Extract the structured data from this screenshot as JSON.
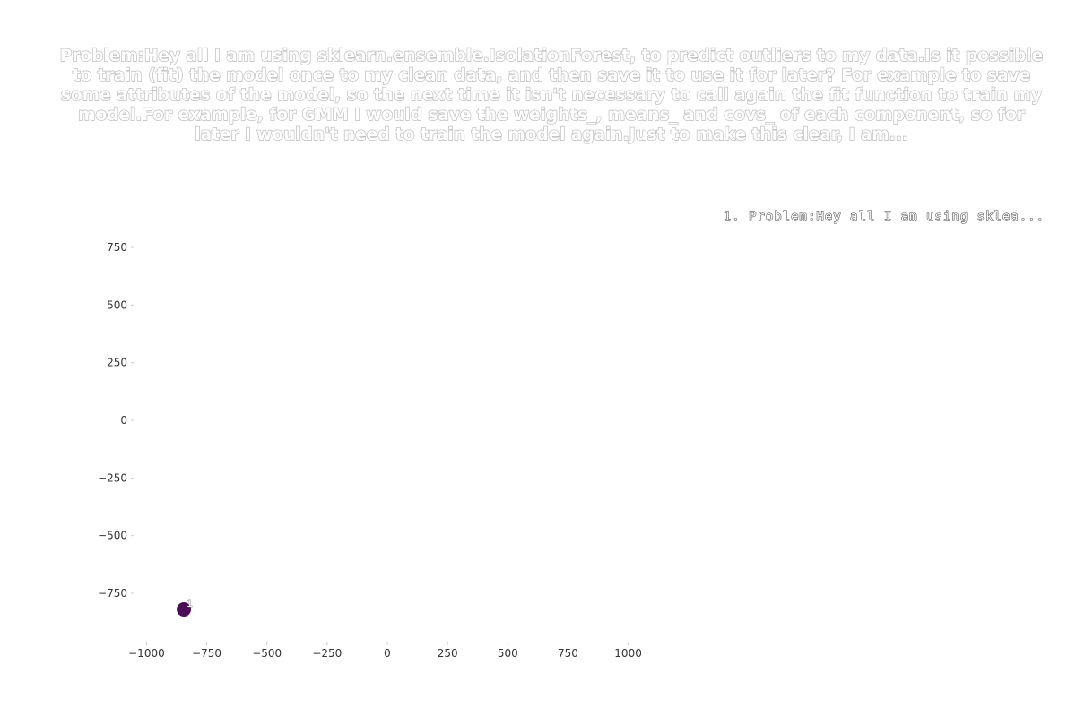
{
  "chart_data": {
    "type": "scatter",
    "title": "Problem:Hey all I am using sklearn.ensemble.IsolationForest, to predict outliers to my data.Is it possible to train (fit) the model once to my clean data, and then save it to use it for later? For example to save some attributes of the model, so the next time it isn't necessary to call again the fit function to train my model.For example, for GMM I would save the weights_, means_ and covs_ of each component, so for later I wouldn't need to train the model again.Just to make this clear, I am...",
    "xlabel": "",
    "ylabel": "",
    "xlim": [
      -1050,
      1050
    ],
    "ylim": [
      -960,
      960
    ],
    "x_ticks": [
      -1000,
      -750,
      -500,
      -250,
      0,
      250,
      500,
      750,
      1000
    ],
    "x_tick_labels": [
      "−1000",
      "−750",
      "−500",
      "−250",
      "0",
      "250",
      "500",
      "750",
      "1000"
    ],
    "y_ticks": [
      750,
      500,
      250,
      0,
      -250,
      -500,
      -750
    ],
    "y_tick_labels": [
      "750",
      "500",
      "250",
      "0",
      "−250",
      "−500",
      "−750"
    ],
    "grid": false,
    "legend": {
      "placement": "top-right",
      "entries": [
        "1. Problem:Hey all I am using sklea..."
      ]
    },
    "points": [
      {
        "x": -845,
        "y": -820,
        "label": "1",
        "color": "#4b0c57"
      }
    ]
  }
}
